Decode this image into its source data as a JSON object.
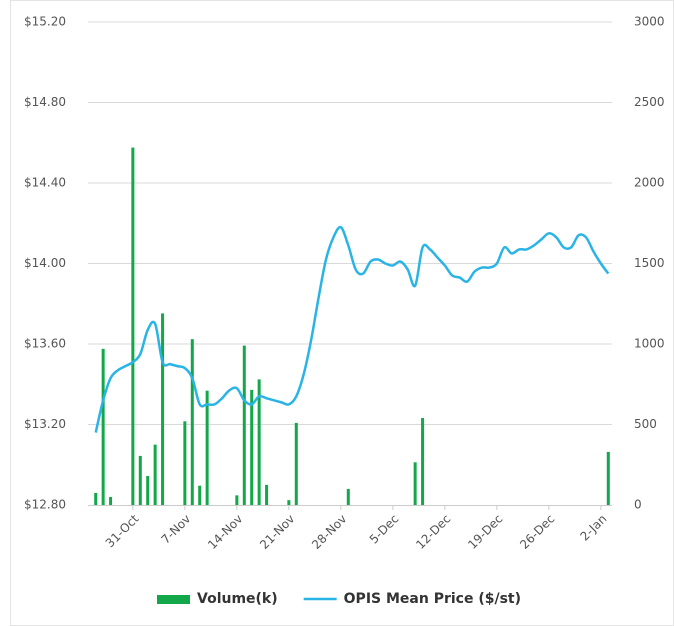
{
  "chart_data": {
    "type": "combo",
    "categories": [
      null,
      null,
      null,
      null,
      null,
      "31-Oct",
      null,
      null,
      null,
      null,
      null,
      null,
      "7-Nov",
      null,
      null,
      null,
      null,
      null,
      null,
      "14-Nov",
      null,
      null,
      null,
      null,
      null,
      null,
      "21-Nov",
      null,
      null,
      null,
      null,
      null,
      null,
      "28-Nov",
      null,
      null,
      null,
      null,
      null,
      null,
      "5-Dec",
      null,
      null,
      null,
      null,
      null,
      null,
      "12-Dec",
      null,
      null,
      null,
      null,
      null,
      null,
      "19-Dec",
      null,
      null,
      null,
      null,
      null,
      null,
      "26-Dec",
      null,
      null,
      null,
      null,
      null,
      null,
      "2-Jan",
      null
    ],
    "series": [
      {
        "name": "Volume(k)",
        "type": "bar",
        "axis": "y2",
        "color": "#12a84a",
        "values": [
          75,
          970,
          50,
          null,
          null,
          2220,
          305,
          180,
          375,
          1190,
          null,
          null,
          520,
          1030,
          120,
          710,
          null,
          null,
          null,
          60,
          990,
          715,
          780,
          125,
          null,
          null,
          30,
          510,
          null,
          null,
          null,
          null,
          null,
          null,
          100,
          null,
          null,
          null,
          null,
          null,
          null,
          null,
          null,
          265,
          540,
          null,
          null,
          null,
          null,
          null,
          null,
          null,
          null,
          null,
          null,
          null,
          null,
          null,
          null,
          null,
          null,
          null,
          null,
          null,
          null,
          null,
          null,
          null,
          null,
          330
        ]
      },
      {
        "name": "OPIS Mean Price ($/st)",
        "type": "line",
        "axis": "y",
        "color": "#2ab4e6",
        "values": [
          13.16,
          13.32,
          13.43,
          13.47,
          13.49,
          13.51,
          13.55,
          13.67,
          13.7,
          13.51,
          13.5,
          13.49,
          13.48,
          13.43,
          13.3,
          13.3,
          13.3,
          13.33,
          13.37,
          13.38,
          13.32,
          13.3,
          13.34,
          13.33,
          13.32,
          13.31,
          13.3,
          13.34,
          13.45,
          13.62,
          13.83,
          14.02,
          14.13,
          14.18,
          14.09,
          13.97,
          13.95,
          14.01,
          14.02,
          14.0,
          13.99,
          14.01,
          13.97,
          13.89,
          14.08,
          14.07,
          14.03,
          13.99,
          13.94,
          13.93,
          13.91,
          13.96,
          13.98,
          13.98,
          14.0,
          14.08,
          14.05,
          14.07,
          14.07,
          14.09,
          14.12,
          14.15,
          14.13,
          14.08,
          14.08,
          14.14,
          14.13,
          14.06,
          14.0,
          13.95
        ]
      }
    ],
    "ylim": [
      12.8,
      15.2
    ],
    "yticks": [
      {
        "value": 12.8,
        "label": "$12.80"
      },
      {
        "value": 13.2,
        "label": "$13.20"
      },
      {
        "value": 13.6,
        "label": "$13.60"
      },
      {
        "value": 14.0,
        "label": "$14.00"
      },
      {
        "value": 14.4,
        "label": "$14.40"
      },
      {
        "value": 14.8,
        "label": "$14.80"
      },
      {
        "value": 15.2,
        "label": "$15.20"
      }
    ],
    "y2lim": [
      0,
      3000
    ],
    "y2ticks": [
      0,
      500,
      1000,
      1500,
      2000,
      2500,
      3000
    ],
    "grid": true,
    "legend": "bottom"
  }
}
